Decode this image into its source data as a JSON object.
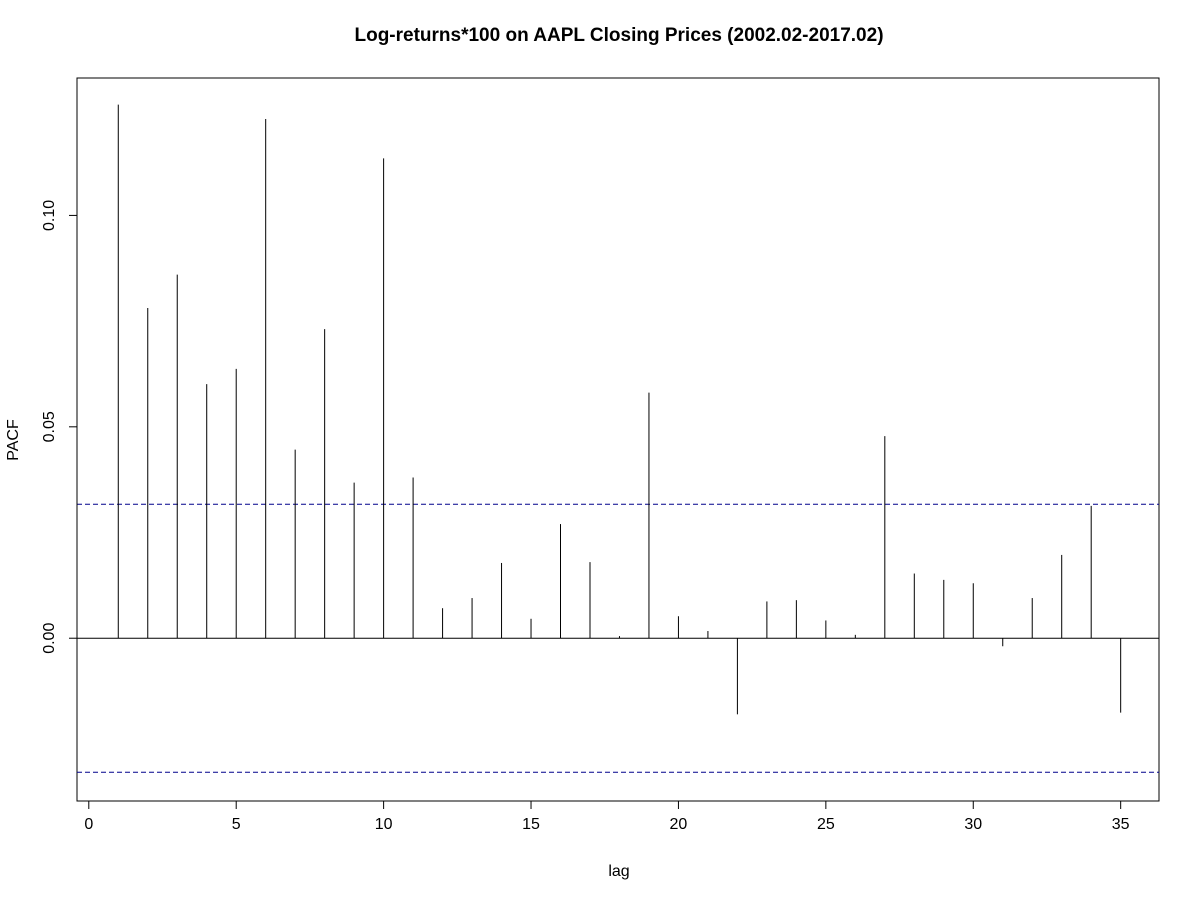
{
  "chart_data": {
    "type": "bar",
    "title": "Log-returns*100 on AAPL Closing Prices (2002.02-2017.02)",
    "xlabel": "lag",
    "ylabel": "PACF",
    "xlim": [
      -0.4,
      36.3
    ],
    "ylim": [
      -0.0385,
      0.1325
    ],
    "x_ticks": [
      0,
      5,
      10,
      15,
      20,
      25,
      30,
      35
    ],
    "x_tick_labels": [
      "0",
      "5",
      "10",
      "15",
      "20",
      "25",
      "30",
      "35"
    ],
    "y_ticks": [
      0.0,
      0.05,
      0.1
    ],
    "y_tick_labels": [
      "0.00",
      "0.05",
      "0.10"
    ],
    "lags": [
      1,
      2,
      3,
      4,
      5,
      6,
      7,
      8,
      9,
      10,
      11,
      12,
      13,
      14,
      15,
      16,
      17,
      18,
      19,
      20,
      21,
      22,
      23,
      24,
      25,
      26,
      27,
      28,
      29,
      30,
      31,
      32,
      33,
      34,
      35
    ],
    "values": [
      0.1262,
      0.0781,
      0.086,
      0.0601,
      0.0637,
      0.1228,
      0.0446,
      0.0731,
      0.0368,
      0.1135,
      0.038,
      0.0071,
      0.0095,
      0.0178,
      0.0046,
      0.027,
      0.018,
      0.0005,
      0.0581,
      0.0052,
      0.0017,
      -0.018,
      0.0087,
      0.009,
      0.0042,
      0.0008,
      0.0478,
      0.0153,
      0.0138,
      0.013,
      -0.0019,
      0.0095,
      0.0197,
      0.0313,
      -0.0176
    ],
    "confidence_bound": 0.0317,
    "confidence_line_color": "#00008b",
    "bar_color": "#000000",
    "zero_line": true,
    "grid": false,
    "legend": "none"
  }
}
